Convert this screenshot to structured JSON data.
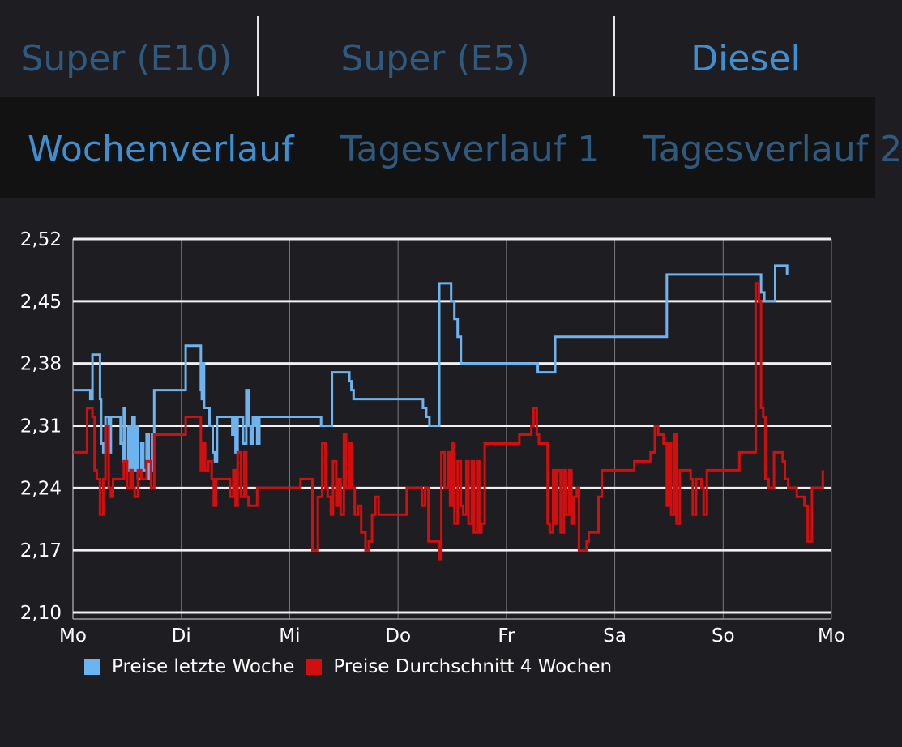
{
  "fuel_tabs": [
    {
      "label": "Super (E10)",
      "active": false
    },
    {
      "label": "Super (E5)",
      "active": false
    },
    {
      "label": "Diesel",
      "active": true
    }
  ],
  "view_tabs": [
    {
      "label": "Wochenverlauf",
      "active": true
    },
    {
      "label": "Tagesverlauf 1",
      "active": false
    },
    {
      "label": "Tagesverlauf 2",
      "active": false
    }
  ],
  "colors": {
    "accent": "#3f8fd0",
    "inactive": "#2f5a80",
    "series_blue": "#6db3ef",
    "series_red": "#d10f0f"
  },
  "chart_data": {
    "type": "line",
    "xlabel": "",
    "ylabel": "",
    "x_ticks": [
      "Mo",
      "Di",
      "Mi",
      "Do",
      "Fr",
      "Sa",
      "So",
      "Mo"
    ],
    "xlim": [
      0,
      7
    ],
    "ylim": [
      2.1,
      2.52
    ],
    "y_ticks": [
      "2,52",
      "2,45",
      "2,38",
      "2,31",
      "2,24",
      "2,17",
      "2,10"
    ],
    "y_tick_values": [
      2.52,
      2.45,
      2.38,
      2.31,
      2.24,
      2.17,
      2.1
    ],
    "grid": "horizontal and vertical",
    "legend_position": "bottom-left",
    "step": true,
    "series": [
      {
        "name": "Preise letzte Woche",
        "color": "#6db3ef",
        "points": [
          [
            0,
            2.35
          ],
          [
            0.15,
            2.35
          ],
          [
            0.16,
            2.34
          ],
          [
            0.18,
            2.39
          ],
          [
            0.24,
            2.39
          ],
          [
            0.25,
            2.34
          ],
          [
            0.26,
            2.29
          ],
          [
            0.28,
            2.28
          ],
          [
            0.3,
            2.32
          ],
          [
            0.33,
            2.28
          ],
          [
            0.35,
            2.32
          ],
          [
            0.43,
            2.32
          ],
          [
            0.44,
            2.29
          ],
          [
            0.46,
            2.27
          ],
          [
            0.47,
            2.33
          ],
          [
            0.48,
            2.27
          ],
          [
            0.5,
            2.26
          ],
          [
            0.51,
            2.31
          ],
          [
            0.53,
            2.26
          ],
          [
            0.55,
            2.32
          ],
          [
            0.57,
            2.26
          ],
          [
            0.58,
            2.31
          ],
          [
            0.6,
            2.25
          ],
          [
            0.63,
            2.29
          ],
          [
            0.65,
            2.26
          ],
          [
            0.68,
            2.3
          ],
          [
            0.7,
            2.25
          ],
          [
            0.72,
            2.26
          ],
          [
            0.73,
            2.3
          ],
          [
            0.75,
            2.35
          ],
          [
            1.03,
            2.35
          ],
          [
            1.04,
            2.4
          ],
          [
            1.16,
            2.4
          ],
          [
            1.18,
            2.35
          ],
          [
            1.19,
            2.34
          ],
          [
            1.2,
            2.38
          ],
          [
            1.21,
            2.33
          ],
          [
            1.25,
            2.33
          ],
          [
            1.26,
            2.31
          ],
          [
            1.29,
            2.28
          ],
          [
            1.31,
            2.27
          ],
          [
            1.33,
            2.32
          ],
          [
            1.38,
            2.32
          ],
          [
            1.46,
            2.32
          ],
          [
            1.47,
            2.3
          ],
          [
            1.48,
            2.32
          ],
          [
            1.5,
            2.28
          ],
          [
            1.52,
            2.32
          ],
          [
            1.55,
            2.32
          ],
          [
            1.57,
            2.29
          ],
          [
            1.6,
            2.35
          ],
          [
            1.62,
            2.31
          ],
          [
            1.64,
            2.29
          ],
          [
            1.66,
            2.32
          ],
          [
            1.68,
            2.31
          ],
          [
            1.69,
            2.32
          ],
          [
            1.7,
            2.29
          ],
          [
            1.72,
            2.32
          ],
          [
            2.28,
            2.32
          ],
          [
            2.29,
            2.31
          ],
          [
            2.38,
            2.31
          ],
          [
            2.39,
            2.37
          ],
          [
            2.53,
            2.37
          ],
          [
            2.55,
            2.36
          ],
          [
            2.57,
            2.35
          ],
          [
            2.59,
            2.34
          ],
          [
            3.2,
            2.34
          ],
          [
            3.23,
            2.33
          ],
          [
            3.26,
            2.32
          ],
          [
            3.29,
            2.31
          ],
          [
            3.36,
            2.31
          ],
          [
            3.38,
            2.47
          ],
          [
            3.46,
            2.47
          ],
          [
            3.49,
            2.45
          ],
          [
            3.52,
            2.43
          ],
          [
            3.55,
            2.41
          ],
          [
            3.58,
            2.38
          ],
          [
            4.28,
            2.38
          ],
          [
            4.29,
            2.37
          ],
          [
            4.44,
            2.37
          ],
          [
            4.45,
            2.41
          ],
          [
            5.46,
            2.41
          ],
          [
            5.48,
            2.48
          ],
          [
            6.32,
            2.48
          ],
          [
            6.35,
            2.46
          ],
          [
            6.38,
            2.45
          ],
          [
            6.47,
            2.45
          ],
          [
            6.48,
            2.49
          ],
          [
            6.58,
            2.49
          ],
          [
            6.59,
            2.48
          ]
        ]
      },
      {
        "name": "Preise Durchschnitt 4 Wochen",
        "color": "#d10f0f",
        "points": [
          [
            0,
            2.28
          ],
          [
            0.12,
            2.28
          ],
          [
            0.13,
            2.33
          ],
          [
            0.18,
            2.32
          ],
          [
            0.2,
            2.26
          ],
          [
            0.22,
            2.25
          ],
          [
            0.25,
            2.21
          ],
          [
            0.28,
            2.25
          ],
          [
            0.3,
            2.31
          ],
          [
            0.33,
            2.24
          ],
          [
            0.35,
            2.23
          ],
          [
            0.37,
            2.25
          ],
          [
            0.45,
            2.25
          ],
          [
            0.47,
            2.27
          ],
          [
            0.5,
            2.24
          ],
          [
            0.53,
            2.26
          ],
          [
            0.55,
            2.24
          ],
          [
            0.57,
            2.23
          ],
          [
            0.6,
            2.26
          ],
          [
            0.63,
            2.25
          ],
          [
            0.67,
            2.25
          ],
          [
            0.68,
            2.27
          ],
          [
            0.72,
            2.24
          ],
          [
            0.75,
            2.3
          ],
          [
            1.03,
            2.3
          ],
          [
            1.04,
            2.32
          ],
          [
            1.17,
            2.32
          ],
          [
            1.18,
            2.26
          ],
          [
            1.2,
            2.29
          ],
          [
            1.22,
            2.26
          ],
          [
            1.25,
            2.27
          ],
          [
            1.28,
            2.25
          ],
          [
            1.3,
            2.22
          ],
          [
            1.32,
            2.25
          ],
          [
            1.35,
            2.25
          ],
          [
            1.38,
            2.25
          ],
          [
            1.42,
            2.25
          ],
          [
            1.45,
            2.23
          ],
          [
            1.48,
            2.26
          ],
          [
            1.5,
            2.22
          ],
          [
            1.52,
            2.28
          ],
          [
            1.55,
            2.23
          ],
          [
            1.58,
            2.28
          ],
          [
            1.6,
            2.23
          ],
          [
            1.62,
            2.22
          ],
          [
            1.66,
            2.22
          ],
          [
            1.7,
            2.24
          ],
          [
            2.05,
            2.24
          ],
          [
            2.1,
            2.25
          ],
          [
            2.2,
            2.25
          ],
          [
            2.21,
            2.17
          ],
          [
            2.25,
            2.17
          ],
          [
            2.26,
            2.23
          ],
          [
            2.28,
            2.23
          ],
          [
            2.3,
            2.29
          ],
          [
            2.33,
            2.24
          ],
          [
            2.35,
            2.23
          ],
          [
            2.38,
            2.21
          ],
          [
            2.4,
            2.27
          ],
          [
            2.43,
            2.22
          ],
          [
            2.45,
            2.25
          ],
          [
            2.47,
            2.21
          ],
          [
            2.5,
            2.3
          ],
          [
            2.52,
            2.24
          ],
          [
            2.55,
            2.29
          ],
          [
            2.57,
            2.24
          ],
          [
            2.6,
            2.21
          ],
          [
            2.63,
            2.22
          ],
          [
            2.66,
            2.19
          ],
          [
            2.7,
            2.17
          ],
          [
            2.73,
            2.18
          ],
          [
            2.76,
            2.21
          ],
          [
            2.79,
            2.23
          ],
          [
            2.82,
            2.21
          ],
          [
            3.06,
            2.21
          ],
          [
            3.08,
            2.24
          ],
          [
            3.2,
            2.24
          ],
          [
            3.22,
            2.22
          ],
          [
            3.25,
            2.24
          ],
          [
            3.28,
            2.18
          ],
          [
            3.3,
            2.18
          ],
          [
            3.35,
            2.18
          ],
          [
            3.38,
            2.16
          ],
          [
            3.4,
            2.28
          ],
          [
            3.43,
            2.24
          ],
          [
            3.46,
            2.28
          ],
          [
            3.48,
            2.22
          ],
          [
            3.5,
            2.29
          ],
          [
            3.52,
            2.2
          ],
          [
            3.55,
            2.27
          ],
          [
            3.58,
            2.22
          ],
          [
            3.6,
            2.21
          ],
          [
            3.63,
            2.27
          ],
          [
            3.65,
            2.2
          ],
          [
            3.68,
            2.27
          ],
          [
            3.7,
            2.19
          ],
          [
            3.73,
            2.27
          ],
          [
            3.75,
            2.19
          ],
          [
            3.77,
            2.2
          ],
          [
            3.8,
            2.29
          ],
          [
            4.1,
            2.29
          ],
          [
            4.12,
            2.3
          ],
          [
            4.2,
            2.3
          ],
          [
            4.23,
            2.31
          ],
          [
            4.25,
            2.33
          ],
          [
            4.28,
            2.3
          ],
          [
            4.3,
            2.29
          ],
          [
            4.35,
            2.29
          ],
          [
            4.38,
            2.2
          ],
          [
            4.4,
            2.19
          ],
          [
            4.43,
            2.26
          ],
          [
            4.45,
            2.2
          ],
          [
            4.47,
            2.26
          ],
          [
            4.5,
            2.19
          ],
          [
            4.53,
            2.26
          ],
          [
            4.55,
            2.21
          ],
          [
            4.58,
            2.26
          ],
          [
            4.6,
            2.2
          ],
          [
            4.62,
            2.23
          ],
          [
            4.65,
            2.24
          ],
          [
            4.67,
            2.17
          ],
          [
            4.72,
            2.17
          ],
          [
            4.74,
            2.18
          ],
          [
            4.76,
            2.19
          ],
          [
            4.8,
            2.19
          ],
          [
            4.85,
            2.23
          ],
          [
            4.88,
            2.26
          ],
          [
            5.15,
            2.26
          ],
          [
            5.18,
            2.27
          ],
          [
            5.3,
            2.27
          ],
          [
            5.33,
            2.28
          ],
          [
            5.37,
            2.31
          ],
          [
            5.4,
            2.3
          ],
          [
            5.45,
            2.29
          ],
          [
            5.48,
            2.22
          ],
          [
            5.5,
            2.29
          ],
          [
            5.52,
            2.21
          ],
          [
            5.55,
            2.3
          ],
          [
            5.57,
            2.2
          ],
          [
            5.6,
            2.26
          ],
          [
            5.65,
            2.26
          ],
          [
            5.7,
            2.25
          ],
          [
            5.72,
            2.21
          ],
          [
            5.75,
            2.25
          ],
          [
            5.78,
            2.25
          ],
          [
            5.8,
            2.24
          ],
          [
            5.82,
            2.21
          ],
          [
            5.85,
            2.26
          ],
          [
            6.12,
            2.26
          ],
          [
            6.15,
            2.28
          ],
          [
            6.27,
            2.28
          ],
          [
            6.3,
            2.47
          ],
          [
            6.33,
            2.45
          ],
          [
            6.35,
            2.33
          ],
          [
            6.37,
            2.32
          ],
          [
            6.39,
            2.25
          ],
          [
            6.42,
            2.24
          ],
          [
            6.45,
            2.24
          ],
          [
            6.47,
            2.28
          ],
          [
            6.52,
            2.28
          ],
          [
            6.55,
            2.27
          ],
          [
            6.57,
            2.25
          ],
          [
            6.6,
            2.24
          ],
          [
            6.63,
            2.24
          ],
          [
            6.65,
            2.24
          ],
          [
            6.68,
            2.23
          ],
          [
            6.72,
            2.23
          ],
          [
            6.75,
            2.22
          ],
          [
            6.78,
            2.18
          ],
          [
            6.82,
            2.24
          ],
          [
            6.9,
            2.24
          ],
          [
            6.92,
            2.26
          ]
        ]
      }
    ]
  }
}
